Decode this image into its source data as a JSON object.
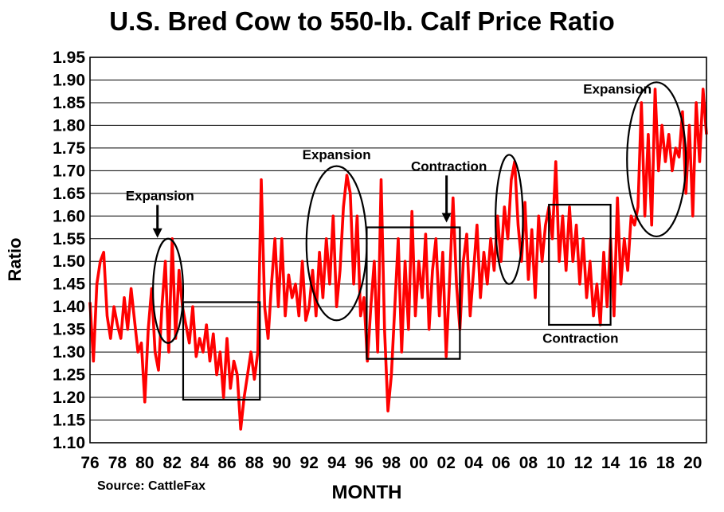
{
  "title": "U.S. Bred Cow to 550-lb. Calf Price Ratio",
  "source": "Source: CattleFax",
  "chart_data": {
    "type": "line",
    "title": "U.S. Bred Cow to 550-lb. Calf Price Ratio",
    "xlabel": "MONTH",
    "ylabel": "Ratio",
    "x_range": [
      1976.0,
      2021.0
    ],
    "ylim": [
      1.1,
      1.95
    ],
    "ytick_step": 0.05,
    "ytick_labels": [
      "1.10",
      "1.15",
      "1.20",
      "1.25",
      "1.30",
      "1.35",
      "1.40",
      "1.45",
      "1.50",
      "1.55",
      "1.60",
      "1.65",
      "1.70",
      "1.75",
      "1.80",
      "1.85",
      "1.90",
      "1.95"
    ],
    "xtick_labels": [
      "76",
      "78",
      "80",
      "82",
      "84",
      "86",
      "88",
      "90",
      "92",
      "94",
      "96",
      "98",
      "00",
      "02",
      "04",
      "06",
      "08",
      "10",
      "12",
      "14",
      "16",
      "18",
      "20"
    ],
    "xtick_years": [
      1976,
      1978,
      1980,
      1982,
      1984,
      1986,
      1988,
      1990,
      1992,
      1994,
      1996,
      1998,
      2000,
      2002,
      2004,
      2006,
      2008,
      2010,
      2012,
      2014,
      2016,
      2018,
      2020
    ],
    "grid": "horizontal",
    "series": [
      {
        "color": "#ff0000",
        "points": [
          [
            1976.0,
            1.41
          ],
          [
            1976.25,
            1.28
          ],
          [
            1976.5,
            1.45
          ],
          [
            1976.75,
            1.5
          ],
          [
            1977.0,
            1.52
          ],
          [
            1977.25,
            1.38
          ],
          [
            1977.5,
            1.33
          ],
          [
            1977.75,
            1.4
          ],
          [
            1978.0,
            1.36
          ],
          [
            1978.25,
            1.33
          ],
          [
            1978.5,
            1.42
          ],
          [
            1978.75,
            1.35
          ],
          [
            1979.0,
            1.44
          ],
          [
            1979.25,
            1.37
          ],
          [
            1979.5,
            1.3
          ],
          [
            1979.75,
            1.32
          ],
          [
            1980.0,
            1.19
          ],
          [
            1980.25,
            1.35
          ],
          [
            1980.5,
            1.44
          ],
          [
            1980.75,
            1.3
          ],
          [
            1981.0,
            1.26
          ],
          [
            1981.25,
            1.4
          ],
          [
            1981.5,
            1.5
          ],
          [
            1981.75,
            1.3
          ],
          [
            1982.0,
            1.55
          ],
          [
            1982.25,
            1.33
          ],
          [
            1982.5,
            1.48
          ],
          [
            1982.75,
            1.4
          ],
          [
            1983.0,
            1.36
          ],
          [
            1983.25,
            1.32
          ],
          [
            1983.5,
            1.4
          ],
          [
            1983.75,
            1.29
          ],
          [
            1984.0,
            1.33
          ],
          [
            1984.25,
            1.3
          ],
          [
            1984.5,
            1.36
          ],
          [
            1984.75,
            1.28
          ],
          [
            1985.0,
            1.34
          ],
          [
            1985.25,
            1.25
          ],
          [
            1985.5,
            1.3
          ],
          [
            1985.75,
            1.2
          ],
          [
            1986.0,
            1.33
          ],
          [
            1986.25,
            1.22
          ],
          [
            1986.5,
            1.28
          ],
          [
            1986.75,
            1.25
          ],
          [
            1987.0,
            1.13
          ],
          [
            1987.25,
            1.2
          ],
          [
            1987.5,
            1.25
          ],
          [
            1987.75,
            1.3
          ],
          [
            1988.0,
            1.24
          ],
          [
            1988.25,
            1.3
          ],
          [
            1988.5,
            1.68
          ],
          [
            1988.75,
            1.4
          ],
          [
            1989.0,
            1.33
          ],
          [
            1989.25,
            1.45
          ],
          [
            1989.5,
            1.55
          ],
          [
            1989.75,
            1.4
          ],
          [
            1990.0,
            1.55
          ],
          [
            1990.25,
            1.38
          ],
          [
            1990.5,
            1.47
          ],
          [
            1990.75,
            1.42
          ],
          [
            1991.0,
            1.45
          ],
          [
            1991.25,
            1.38
          ],
          [
            1991.5,
            1.5
          ],
          [
            1991.75,
            1.37
          ],
          [
            1992.0,
            1.4
          ],
          [
            1992.25,
            1.48
          ],
          [
            1992.5,
            1.38
          ],
          [
            1992.75,
            1.52
          ],
          [
            1993.0,
            1.42
          ],
          [
            1993.25,
            1.55
          ],
          [
            1993.5,
            1.45
          ],
          [
            1993.75,
            1.6
          ],
          [
            1994.0,
            1.4
          ],
          [
            1994.25,
            1.48
          ],
          [
            1994.5,
            1.62
          ],
          [
            1994.75,
            1.69
          ],
          [
            1995.0,
            1.65
          ],
          [
            1995.25,
            1.45
          ],
          [
            1995.5,
            1.6
          ],
          [
            1995.75,
            1.38
          ],
          [
            1996.0,
            1.42
          ],
          [
            1996.25,
            1.28
          ],
          [
            1996.5,
            1.4
          ],
          [
            1996.75,
            1.5
          ],
          [
            1997.0,
            1.3
          ],
          [
            1997.25,
            1.68
          ],
          [
            1997.5,
            1.35
          ],
          [
            1997.75,
            1.17
          ],
          [
            1998.0,
            1.25
          ],
          [
            1998.25,
            1.4
          ],
          [
            1998.5,
            1.55
          ],
          [
            1998.75,
            1.3
          ],
          [
            1999.0,
            1.5
          ],
          [
            1999.25,
            1.35
          ],
          [
            1999.5,
            1.61
          ],
          [
            1999.75,
            1.38
          ],
          [
            2000.0,
            1.5
          ],
          [
            2000.25,
            1.42
          ],
          [
            2000.5,
            1.56
          ],
          [
            2000.75,
            1.35
          ],
          [
            2001.0,
            1.48
          ],
          [
            2001.25,
            1.55
          ],
          [
            2001.5,
            1.38
          ],
          [
            2001.75,
            1.52
          ],
          [
            2002.0,
            1.29
          ],
          [
            2002.25,
            1.46
          ],
          [
            2002.5,
            1.64
          ],
          [
            2002.75,
            1.45
          ],
          [
            2003.0,
            1.35
          ],
          [
            2003.25,
            1.5
          ],
          [
            2003.5,
            1.56
          ],
          [
            2003.75,
            1.38
          ],
          [
            2004.0,
            1.48
          ],
          [
            2004.25,
            1.58
          ],
          [
            2004.5,
            1.42
          ],
          [
            2004.75,
            1.52
          ],
          [
            2005.0,
            1.45
          ],
          [
            2005.25,
            1.55
          ],
          [
            2005.5,
            1.48
          ],
          [
            2005.75,
            1.6
          ],
          [
            2006.0,
            1.5
          ],
          [
            2006.25,
            1.62
          ],
          [
            2006.5,
            1.55
          ],
          [
            2006.75,
            1.68
          ],
          [
            2007.0,
            1.72
          ],
          [
            2007.25,
            1.58
          ],
          [
            2007.5,
            1.5
          ],
          [
            2007.75,
            1.63
          ],
          [
            2008.0,
            1.46
          ],
          [
            2008.25,
            1.57
          ],
          [
            2008.5,
            1.42
          ],
          [
            2008.75,
            1.6
          ],
          [
            2009.0,
            1.5
          ],
          [
            2009.25,
            1.58
          ],
          [
            2009.5,
            1.62
          ],
          [
            2009.75,
            1.55
          ],
          [
            2010.0,
            1.72
          ],
          [
            2010.25,
            1.5
          ],
          [
            2010.5,
            1.6
          ],
          [
            2010.75,
            1.48
          ],
          [
            2011.0,
            1.62
          ],
          [
            2011.25,
            1.5
          ],
          [
            2011.5,
            1.58
          ],
          [
            2011.75,
            1.45
          ],
          [
            2012.0,
            1.55
          ],
          [
            2012.25,
            1.42
          ],
          [
            2012.5,
            1.5
          ],
          [
            2012.75,
            1.38
          ],
          [
            2013.0,
            1.45
          ],
          [
            2013.25,
            1.36
          ],
          [
            2013.5,
            1.52
          ],
          [
            2013.75,
            1.4
          ],
          [
            2014.0,
            1.55
          ],
          [
            2014.25,
            1.38
          ],
          [
            2014.5,
            1.64
          ],
          [
            2014.75,
            1.45
          ],
          [
            2015.0,
            1.55
          ],
          [
            2015.25,
            1.48
          ],
          [
            2015.5,
            1.6
          ],
          [
            2015.75,
            1.58
          ],
          [
            2016.0,
            1.62
          ],
          [
            2016.25,
            1.85
          ],
          [
            2016.5,
            1.6
          ],
          [
            2016.75,
            1.78
          ],
          [
            2017.0,
            1.58
          ],
          [
            2017.25,
            1.88
          ],
          [
            2017.5,
            1.7
          ],
          [
            2017.75,
            1.8
          ],
          [
            2018.0,
            1.72
          ],
          [
            2018.25,
            1.78
          ],
          [
            2018.5,
            1.7
          ],
          [
            2018.75,
            1.75
          ],
          [
            2019.0,
            1.73
          ],
          [
            2019.25,
            1.83
          ],
          [
            2019.5,
            1.65
          ],
          [
            2019.75,
            1.8
          ],
          [
            2020.0,
            1.6
          ],
          [
            2020.25,
            1.85
          ],
          [
            2020.5,
            1.72
          ],
          [
            2020.75,
            1.88
          ],
          [
            2021.0,
            1.78
          ]
        ]
      }
    ],
    "annotations": [
      {
        "label": "Expansion",
        "shape": "ellipse",
        "x_range": [
          1980.6,
          1982.8
        ],
        "y_range": [
          1.32,
          1.55
        ],
        "text_at": [
          1981.1,
          1.635
        ],
        "arrow": true
      },
      {
        "label": "",
        "shape": "rect",
        "x_range": [
          1982.8,
          1988.4
        ],
        "y_range": [
          1.195,
          1.41
        ]
      },
      {
        "label": "Expansion",
        "shape": "ellipse",
        "x_range": [
          1991.8,
          1996.2
        ],
        "y_range": [
          1.37,
          1.71
        ],
        "text_at": [
          1994.0,
          1.725
        ],
        "arrow": false
      },
      {
        "label": "Contraction",
        "shape": "rect",
        "x_range": [
          1996.2,
          2003.0
        ],
        "y_range": [
          1.285,
          1.575
        ],
        "text_at": [
          2002.2,
          1.7
        ],
        "arrow": true
      },
      {
        "label": "",
        "shape": "ellipse",
        "x_range": [
          2005.6,
          2007.6
        ],
        "y_range": [
          1.45,
          1.735
        ]
      },
      {
        "label": "Contraction",
        "shape": "rect",
        "x_range": [
          2009.5,
          2014.0
        ],
        "y_range": [
          1.36,
          1.625
        ],
        "text_at": [
          2011.8,
          1.32
        ],
        "arrow": false
      },
      {
        "label": "Expansion",
        "shape": "ellipse",
        "x_range": [
          2015.2,
          2019.5
        ],
        "y_range": [
          1.555,
          1.895
        ],
        "text_at": [
          2014.5,
          1.87
        ],
        "arrow": false
      }
    ]
  }
}
